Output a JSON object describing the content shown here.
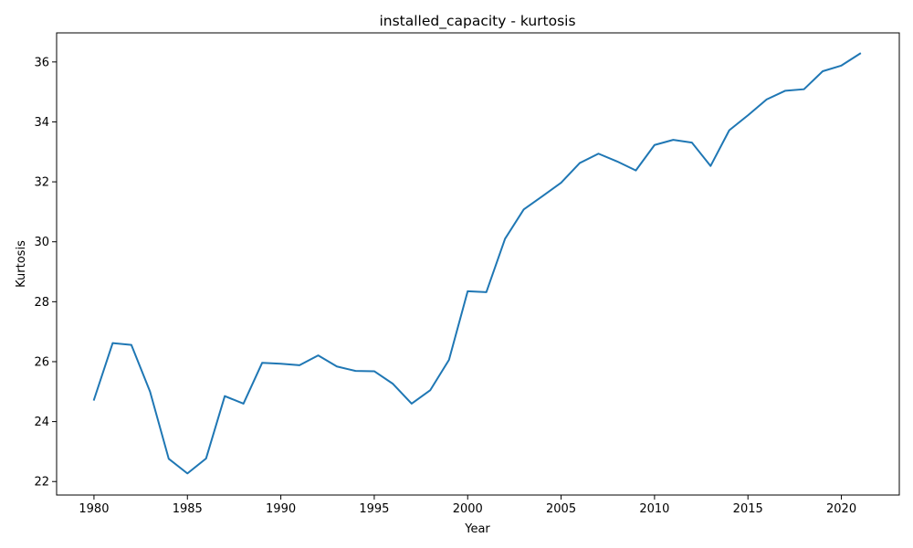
{
  "chart_data": {
    "type": "line",
    "title": "installed_capacity - kurtosis",
    "xlabel": "Year",
    "ylabel": "Kurtosis",
    "xlim": [
      1978,
      2023.1
    ],
    "ylim": [
      21.55,
      36.97
    ],
    "xticks": [
      1980,
      1985,
      1990,
      1995,
      2000,
      2005,
      2010,
      2015,
      2020
    ],
    "yticks": [
      22,
      24,
      26,
      28,
      30,
      32,
      34,
      36
    ],
    "grid": false,
    "legend": "none",
    "series": [
      {
        "color": "#1f77b4",
        "x": [
          1980,
          1981,
          1982,
          1983,
          1984,
          1985,
          1986,
          1987,
          1988,
          1989,
          1990,
          1991,
          1992,
          1993,
          1994,
          1995,
          1996,
          1997,
          1998,
          1999,
          2000,
          2001,
          2002,
          2003,
          2004,
          2005,
          2006,
          2007,
          2008,
          2009,
          2010,
          2011,
          2012,
          2013,
          2014,
          2015,
          2016,
          2017,
          2018,
          2019,
          2020,
          2021
        ],
        "y": [
          24.73,
          26.62,
          26.56,
          25.0,
          22.76,
          22.27,
          22.77,
          24.85,
          24.6,
          25.96,
          25.93,
          25.88,
          26.21,
          25.84,
          25.69,
          25.68,
          25.26,
          24.6,
          25.05,
          26.06,
          28.35,
          28.32,
          30.1,
          31.08,
          31.52,
          31.97,
          32.63,
          32.94,
          32.68,
          32.38,
          33.23,
          33.4,
          33.31,
          32.53,
          33.72,
          34.22,
          34.75,
          35.04,
          35.09,
          35.69,
          35.88,
          36.28
        ]
      }
    ]
  }
}
